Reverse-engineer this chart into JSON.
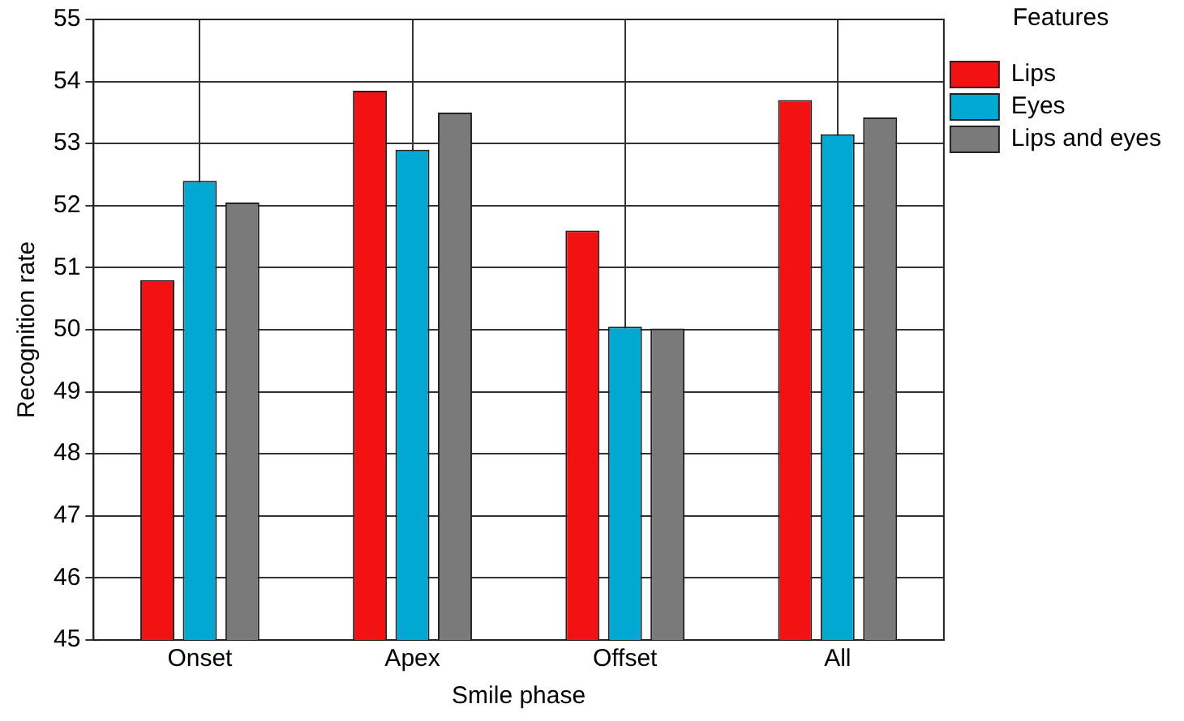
{
  "chart_data": {
    "type": "bar",
    "xlabel": "Smile phase",
    "ylabel": "Recognition rate",
    "legend_title": "Features",
    "categories": [
      "Onset",
      "Apex",
      "Offset",
      "All"
    ],
    "series": [
      {
        "name": "Lips",
        "color": "#f21212",
        "values": [
          50.8,
          53.85,
          51.6,
          53.7
        ]
      },
      {
        "name": "Eyes",
        "color": "#00a8d2",
        "values": [
          52.4,
          52.9,
          50.05,
          53.15
        ]
      },
      {
        "name": "Lips and eyes",
        "color": "#7a7a7a",
        "values": [
          52.05,
          53.5,
          50.02,
          53.42
        ]
      }
    ],
    "ylim": [
      45,
      55
    ],
    "yticks": [
      45,
      46,
      47,
      48,
      49,
      50,
      51,
      52,
      53,
      54,
      55
    ],
    "grid": true,
    "legend": "top right"
  }
}
